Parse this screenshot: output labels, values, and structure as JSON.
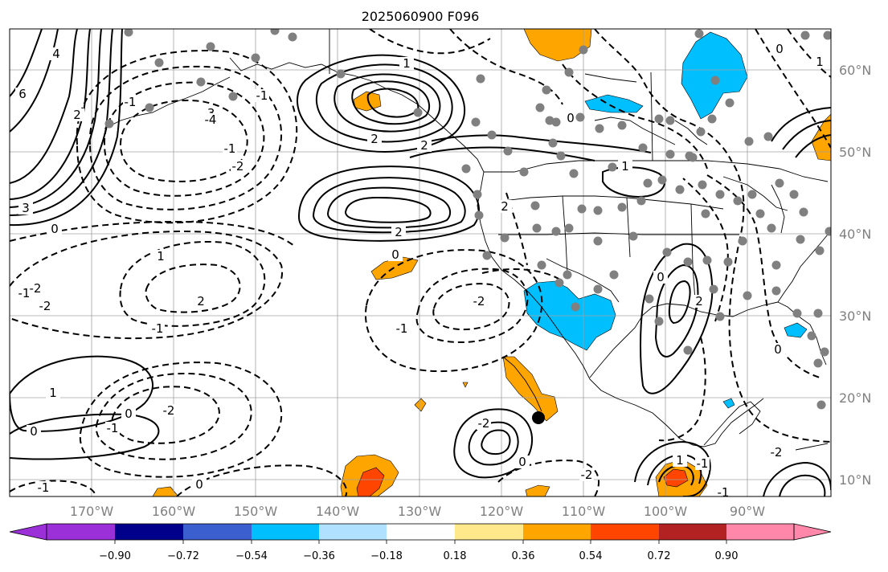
{
  "title": "2025060900 F096",
  "lon_labels": [
    "170°W",
    "160°W",
    "150°W",
    "140°W",
    "130°W",
    "120°W",
    "110°W",
    "100°W",
    "90°W"
  ],
  "lat_labels": [
    "60°N",
    "50°N",
    "40°N",
    "30°N",
    "20°N",
    "10°N"
  ],
  "colorbar": {
    "tick_labels": [
      "−0.90",
      "−0.72",
      "−0.54",
      "−0.36",
      "−0.18",
      "0.18",
      "0.36",
      "0.54",
      "0.72",
      "0.90"
    ],
    "colors": [
      "#9b30d9",
      "#00008b",
      "#3b5fcf",
      "#00bfff",
      "#b0e2ff",
      "#ffffff",
      "#ffe98a",
      "#ffa500",
      "#ff4500",
      "#b22222",
      "#ff88aa"
    ]
  },
  "fill_colors": {
    "blue": "#00bfff",
    "orange": "#ffa500",
    "red": "#ff4500"
  },
  "contour_labels": [
    "6",
    "4",
    "2",
    "3",
    "0",
    "-1",
    "-2",
    "-1",
    "-3",
    "-4",
    "-2",
    "-1",
    "1",
    "2",
    "2",
    "2",
    "0",
    "1",
    "2",
    "-1",
    "-2",
    "-1",
    "0",
    "-2",
    "0",
    "1",
    "0",
    "-1",
    "-2",
    "1",
    "2",
    "-1",
    "-2",
    "0",
    "-2",
    "0",
    "2",
    "1",
    "0",
    "-1",
    "-1",
    "1",
    "-2",
    "0",
    "-1",
    "0"
  ]
}
